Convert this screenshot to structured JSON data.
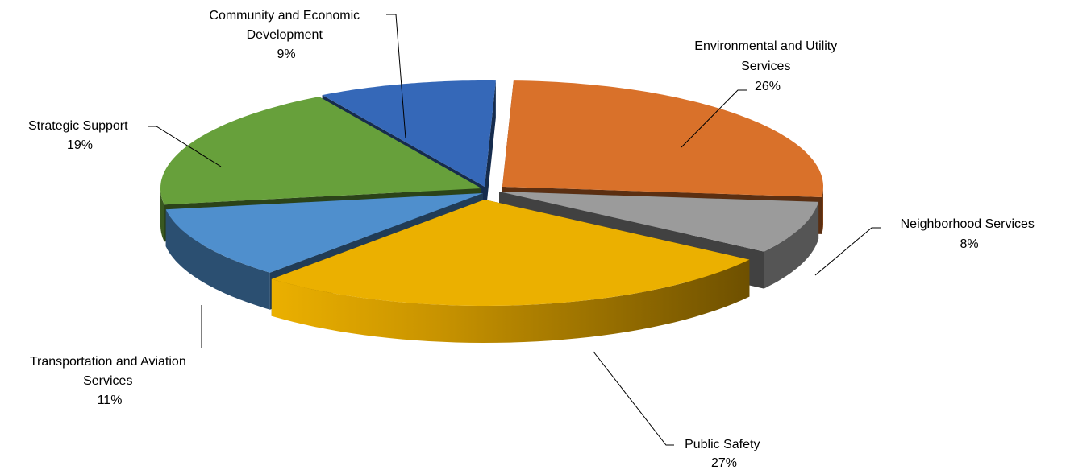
{
  "chart_data": {
    "type": "pie",
    "style": "3d-exploded",
    "slices": [
      {
        "label_lines": [
          "Environmental  and Utility",
          "Services"
        ],
        "pct_text": "26%",
        "value": 26,
        "color": "#D9712A"
      },
      {
        "label_lines": [
          "Neighborhood  Services"
        ],
        "pct_text": "8%",
        "value": 8,
        "color": "#9B9B9B"
      },
      {
        "label_lines": [
          "Public Safety"
        ],
        "pct_text": "27%",
        "value": 27,
        "color": "#EBB000"
      },
      {
        "label_lines": [
          "Transportation  and Aviation",
          "Services"
        ],
        "pct_text": "11%",
        "value": 11,
        "color": "#4F8FCD"
      },
      {
        "label_lines": [
          "Strategic Support"
        ],
        "pct_text": "19%",
        "value": 19,
        "color": "#67A03B"
      },
      {
        "label_lines": [
          "Community and Economic",
          "Development"
        ],
        "pct_text": "9%",
        "value": 9,
        "color": "#3568B8"
      }
    ]
  }
}
